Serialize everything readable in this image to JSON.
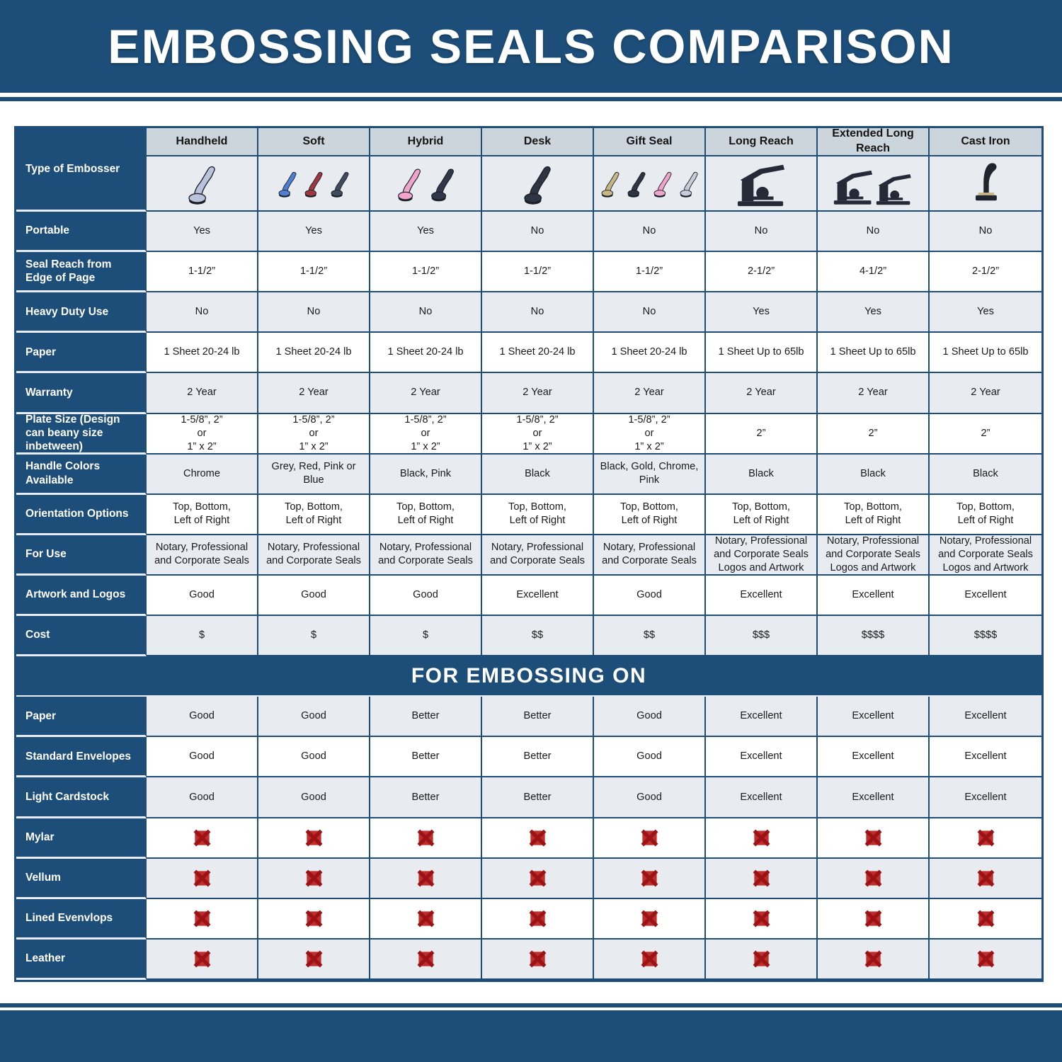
{
  "title": "EMBOSSING SEALS COMPARISON",
  "banner": "FOR EMBOSSING ON",
  "type_of_embosser_label": "Type of Embosser",
  "columns": [
    "Handheld",
    "Soft",
    "Hybrid",
    "Desk",
    "Gift Seal",
    "Long Reach",
    "Extended Long Reach",
    "Cast Iron"
  ],
  "embossers": [
    {
      "label": "Handheld",
      "style": "plier",
      "colors": [
        "#b9c4dc"
      ]
    },
    {
      "label": "Soft",
      "style": "plier",
      "colors": [
        "#4f7fd0",
        "#9e3742",
        "#414b5e"
      ]
    },
    {
      "label": "Hybrid",
      "style": "plier",
      "colors": [
        "#f0a3cb",
        "#30374a"
      ]
    },
    {
      "label": "Desk",
      "style": "plier",
      "colors": [
        "#2d3442"
      ]
    },
    {
      "label": "Gift Seal",
      "style": "plier",
      "colors": [
        "#c8b584",
        "#2d3442",
        "#f0a3cb",
        "#c6cdd9"
      ]
    },
    {
      "label": "Long Reach",
      "style": "press",
      "colors": [
        "#242a38"
      ]
    },
    {
      "label": "Extended Long Reach",
      "style": "press2",
      "colors": [
        "#242a38"
      ]
    },
    {
      "label": "Cast Iron",
      "style": "iron",
      "colors": [
        "#20242e"
      ]
    }
  ],
  "chart_data": {
    "type": "table",
    "title": "EMBOSSING SEALS COMPARISON",
    "columns": [
      "Handheld",
      "Soft",
      "Hybrid",
      "Desk",
      "Gift Seal",
      "Long Reach",
      "Extended Long Reach",
      "Cast Iron"
    ],
    "sections": [
      {
        "title": "",
        "rows": [
          {
            "label": "Portable",
            "shade": "grey",
            "values": [
              "Yes",
              "Yes",
              "Yes",
              "No",
              "No",
              "No",
              "No",
              "No"
            ]
          },
          {
            "label": "Seal Reach from Edge of Page",
            "shade": "white",
            "values": [
              "1-1/2”",
              "1-1/2”",
              "1-1/2”",
              "1-1/2”",
              "1-1/2”",
              "2-1/2”",
              "4-1/2”",
              "2-1/2”"
            ]
          },
          {
            "label": "Heavy Duty Use",
            "shade": "grey",
            "values": [
              "No",
              "No",
              "No",
              "No",
              "No",
              "Yes",
              "Yes",
              "Yes"
            ]
          },
          {
            "label": "Paper",
            "shade": "white",
            "values": [
              "1 Sheet 20-24 lb",
              "1 Sheet 20-24 lb",
              "1 Sheet 20-24 lb",
              "1 Sheet 20-24 lb",
              "1 Sheet 20-24 lb",
              "1 Sheet Up to 65lb",
              "1 Sheet Up to 65lb",
              "1 Sheet Up to 65lb"
            ]
          },
          {
            "label": "Warranty",
            "shade": "grey",
            "values": [
              "2 Year",
              "2 Year",
              "2 Year",
              "2 Year",
              "2 Year",
              "2 Year",
              "2 Year",
              "2 Year"
            ]
          },
          {
            "label": "Plate Size (Design can beany size inbetween)",
            "shade": "white",
            "values": [
              "1-5/8”, 2”\nor\n1” x 2”",
              "1-5/8”, 2”\nor\n1” x 2”",
              "1-5/8”, 2”\nor\n1” x 2”",
              "1-5/8”, 2”\nor\n1” x 2”",
              "1-5/8”, 2”\nor\n1” x 2”",
              "2”",
              "2”",
              "2”"
            ]
          },
          {
            "label": "Handle Colors Available",
            "shade": "grey",
            "values": [
              "Chrome",
              "Grey, Red, Pink or Blue",
              "Black, Pink",
              "Black",
              "Black, Gold, Chrome, Pink",
              "Black",
              "Black",
              "Black"
            ]
          },
          {
            "label": "Orientation Options",
            "shade": "white",
            "values": [
              "Top, Bottom,\nLeft of Right",
              "Top, Bottom,\nLeft of Right",
              "Top, Bottom,\nLeft of Right",
              "Top, Bottom,\nLeft of Right",
              "Top, Bottom,\nLeft of Right",
              "Top, Bottom,\nLeft of Right",
              "Top, Bottom,\nLeft of Right",
              "Top, Bottom,\nLeft of Right"
            ]
          },
          {
            "label": "For Use",
            "shade": "grey",
            "values": [
              "Notary, Professional\nand Corporate Seals",
              "Notary, Professional\nand Corporate Seals",
              "Notary, Professional\nand Corporate Seals",
              "Notary, Professional\nand Corporate Seals",
              "Notary, Professional\nand Corporate Seals",
              "Notary, Professional\nand Corporate Seals\nLogos and Artwork",
              "Notary, Professional\nand Corporate Seals\nLogos and Artwork",
              "Notary, Professional\nand Corporate Seals\nLogos and Artwork"
            ]
          },
          {
            "label": "Artwork and Logos",
            "shade": "white",
            "values": [
              "Good",
              "Good",
              "Good",
              "Excellent",
              "Good",
              "Excellent",
              "Excellent",
              "Excellent"
            ]
          },
          {
            "label": "Cost",
            "shade": "grey",
            "values": [
              "$",
              "$",
              "$",
              "$$",
              "$$",
              "$$$",
              "$$$$",
              "$$$$"
            ]
          }
        ]
      },
      {
        "title": "FOR EMBOSSING ON",
        "rows": [
          {
            "label": "Paper",
            "shade": "grey",
            "values": [
              "Good",
              "Good",
              "Better",
              "Better",
              "Good",
              "Excellent",
              "Excellent",
              "Excellent"
            ]
          },
          {
            "label": "Standard Envelopes",
            "shade": "white",
            "values": [
              "Good",
              "Good",
              "Better",
              "Better",
              "Good",
              "Excellent",
              "Excellent",
              "Excellent"
            ]
          },
          {
            "label": "Light Cardstock",
            "shade": "grey",
            "values": [
              "Good",
              "Good",
              "Better",
              "Better",
              "Good",
              "Excellent",
              "Excellent",
              "Excellent"
            ]
          },
          {
            "label": "Mylar",
            "shade": "white",
            "x_icons": true,
            "values": [
              "✖",
              "✖",
              "✖",
              "✖",
              "✖",
              "✖",
              "✖",
              "✖"
            ]
          },
          {
            "label": "Vellum",
            "shade": "grey",
            "x_icons": true,
            "values": [
              "✖",
              "✖",
              "✖",
              "✖",
              "✖",
              "✖",
              "✖",
              "✖"
            ]
          },
          {
            "label": "Lined Evenvlops",
            "shade": "white",
            "x_icons": true,
            "values": [
              "✖",
              "✖",
              "✖",
              "✖",
              "✖",
              "✖",
              "✖",
              "✖"
            ]
          },
          {
            "label": "Leather",
            "shade": "grey",
            "x_icons": true,
            "values": [
              "✖",
              "✖",
              "✖",
              "✖",
              "✖",
              "✖",
              "✖",
              "✖"
            ]
          }
        ]
      }
    ]
  },
  "colors": {
    "dark_blue": "#1d4e79",
    "border_blue": "#1e4d78",
    "cell_grey": "#e8ecf1",
    "column_header_grey": "#ccd4dc",
    "x_red": "#bf2e2b",
    "x_red_dark": "#9c1317"
  }
}
